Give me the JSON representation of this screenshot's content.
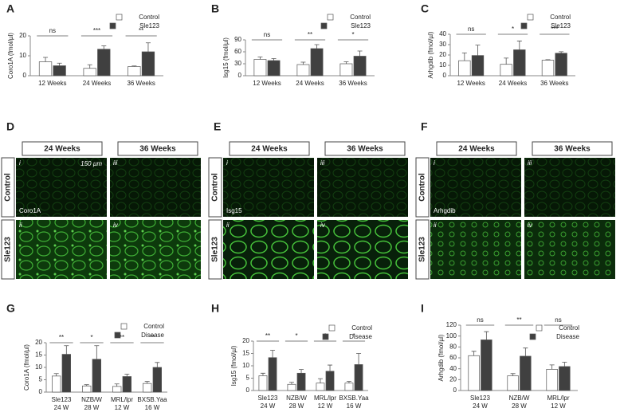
{
  "chart_data": [
    {
      "type": "bar",
      "panel": "A",
      "ylabel": "Coro1A (fmol/µl)",
      "categories": [
        "12 Weeks",
        "24 Weeks",
        "36 Weeks"
      ],
      "series": [
        {
          "name": "Control",
          "color": "#ffffff",
          "values": [
            7,
            3.7,
            4.6
          ],
          "errors": [
            2.2,
            1.8,
            0.3
          ]
        },
        {
          "name": "Sle123",
          "color": "#404040",
          "values": [
            5,
            13.3,
            12
          ],
          "errors": [
            1.3,
            1.7,
            4.5
          ]
        }
      ],
      "significance": [
        "ns",
        "***",
        "**"
      ],
      "ylim": [
        0,
        20
      ],
      "yticks": [
        0,
        10,
        20
      ],
      "legend": "top-right"
    },
    {
      "type": "bar",
      "panel": "B",
      "ylabel": "Isg15 (fmol/µl)",
      "categories": [
        "12 Weeks",
        "24 Weeks",
        "36 Weeks"
      ],
      "series": [
        {
          "name": "Control",
          "color": "#ffffff",
          "values": [
            41,
            28,
            30
          ],
          "errors": [
            6,
            6,
            5
          ]
        },
        {
          "name": "Sle123",
          "color": "#404040",
          "values": [
            38,
            68,
            49
          ],
          "errors": [
            5,
            10,
            13
          ]
        }
      ],
      "significance": [
        "ns",
        "**",
        "*"
      ],
      "ylim": [
        0,
        90
      ],
      "yticks": [
        0,
        30,
        60,
        90
      ],
      "legend": "top-right"
    },
    {
      "type": "bar",
      "panel": "C",
      "ylabel": "Arhgdib (fmol/µl)",
      "categories": [
        "12 Weeks",
        "24 Weeks",
        "36 Weeks"
      ],
      "series": [
        {
          "name": "Control",
          "color": "#ffffff",
          "values": [
            14.5,
            11,
            15
          ],
          "errors": [
            7.5,
            6,
            0.5
          ]
        },
        {
          "name": "Sle123",
          "color": "#404040",
          "values": [
            19.5,
            25,
            21.7
          ],
          "errors": [
            10,
            8.5,
            1.5
          ]
        }
      ],
      "significance": [
        "ns",
        "*",
        "***"
      ],
      "ylim": [
        0,
        40
      ],
      "yticks": [
        0,
        10,
        20,
        30,
        40
      ],
      "legend": "top-right"
    },
    {
      "type": "bar",
      "panel": "G",
      "ylabel": "Coro1A (fmol/µl)",
      "categories": [
        "Sle123",
        "NZB/W",
        "MRL/lpr",
        "BXSB.Yaa"
      ],
      "category_sublabels": [
        "24 W",
        "28 W",
        "12 W",
        "16 W"
      ],
      "series": [
        {
          "name": "Control",
          "color": "#ffffff",
          "values": [
            6.5,
            2.5,
            2.3,
            3.5
          ],
          "errors": [
            1,
            0.5,
            1,
            0.8
          ]
        },
        {
          "name": "Disease",
          "color": "#404040",
          "values": [
            15.3,
            13.3,
            6.3,
            10
          ],
          "errors": [
            3.5,
            5.5,
            1,
            2
          ]
        }
      ],
      "significance": [
        "**",
        "*",
        "**",
        "**"
      ],
      "ylim": [
        0,
        20
      ],
      "yticks": [
        0,
        5,
        10,
        15,
        20
      ],
      "legend": "top-right"
    },
    {
      "type": "bar",
      "panel": "H",
      "ylabel": "Isg15 (fmol/µl)",
      "categories": [
        "Sle123",
        "NZB/W",
        "MRL/lpr",
        "BXSB.Yaa"
      ],
      "category_sublabels": [
        "24 W",
        "28 W",
        "12 W",
        "16 W"
      ],
      "series": [
        {
          "name": "Control",
          "color": "#ffffff",
          "values": [
            6,
            2.5,
            3,
            3
          ],
          "errors": [
            1,
            0.8,
            1.8,
            0.7
          ]
        },
        {
          "name": "Disease",
          "color": "#404040",
          "values": [
            13.3,
            7,
            7.8,
            10.5
          ],
          "errors": [
            3,
            1.5,
            2.5,
            4.5
          ]
        }
      ],
      "significance": [
        "**",
        "*",
        "*",
        "*"
      ],
      "ylim": [
        0,
        20
      ],
      "yticks": [
        0,
        5,
        10,
        15,
        20
      ],
      "legend": "top-right"
    },
    {
      "type": "bar",
      "panel": "I",
      "ylabel": "Arhgdib (fmol/µl)",
      "categories": [
        "Sle123",
        "NZB/W",
        "MRL/lpr"
      ],
      "category_sublabels": [
        "24 W",
        "28 W",
        "12 W"
      ],
      "series": [
        {
          "name": "Control",
          "color": "#ffffff",
          "values": [
            64,
            27,
            39
          ],
          "errors": [
            8,
            4,
            8
          ]
        },
        {
          "name": "Disease",
          "color": "#404040",
          "values": [
            93,
            63,
            44
          ],
          "errors": [
            15,
            15,
            8
          ]
        }
      ],
      "significance": [
        "ns",
        "**",
        "ns"
      ],
      "ylim": [
        0,
        120
      ],
      "yticks": [
        0,
        20,
        40,
        60,
        80,
        100,
        120
      ],
      "legend": "top-right"
    }
  ],
  "image_panels": [
    {
      "panel": "D",
      "columns": [
        "24 Weeks",
        "36 Weeks"
      ],
      "rows": [
        "Control",
        "Sle123"
      ],
      "marker": "Coro1A",
      "scale_bar": "150 µm",
      "subpanels": [
        "i",
        "iii",
        "ii",
        "iv"
      ]
    },
    {
      "panel": "E",
      "columns": [
        "24 Weeks",
        "36 Weeks"
      ],
      "rows": [
        "Control",
        "Sle123"
      ],
      "marker": "Isg15",
      "subpanels": [
        "i",
        "iii",
        "ii",
        "iv"
      ]
    },
    {
      "panel": "F",
      "columns": [
        "24 Weeks",
        "36 Weeks"
      ],
      "rows": [
        "Control",
        "Sle123"
      ],
      "marker": "Arhgdib",
      "subpanels": [
        "i",
        "iii",
        "ii",
        "iv"
      ]
    }
  ]
}
